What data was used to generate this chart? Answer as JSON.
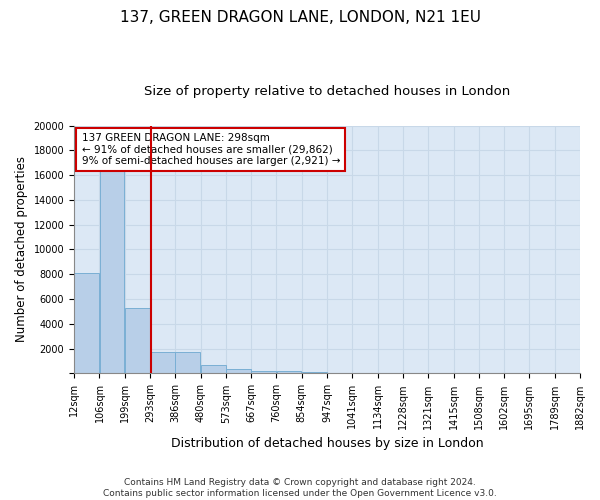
{
  "title": "137, GREEN DRAGON LANE, LONDON, N21 1EU",
  "subtitle": "Size of property relative to detached houses in London",
  "xlabel": "Distribution of detached houses by size in London",
  "ylabel": "Number of detached properties",
  "footer_line1": "Contains HM Land Registry data © Crown copyright and database right 2024.",
  "footer_line2": "Contains public sector information licensed under the Open Government Licence v3.0.",
  "annotation_line1": "137 GREEN DRAGON LANE: 298sqm",
  "annotation_line2": "← 91% of detached houses are smaller (29,862)",
  "annotation_line3": "9% of semi-detached houses are larger (2,921) →",
  "bar_left_edges": [
    12,
    106,
    199,
    293,
    386,
    480,
    573,
    667,
    760,
    854,
    947,
    1041,
    1134,
    1228,
    1321,
    1415,
    1508,
    1602,
    1695,
    1789
  ],
  "bar_heights": [
    8100,
    16500,
    5300,
    1750,
    1750,
    650,
    350,
    200,
    175,
    150,
    0,
    0,
    0,
    0,
    0,
    0,
    0,
    0,
    0,
    0
  ],
  "bin_width": 93,
  "tick_labels": [
    "12sqm",
    "106sqm",
    "199sqm",
    "293sqm",
    "386sqm",
    "480sqm",
    "573sqm",
    "667sqm",
    "760sqm",
    "854sqm",
    "947sqm",
    "1041sqm",
    "1134sqm",
    "1228sqm",
    "1321sqm",
    "1415sqm",
    "1508sqm",
    "1602sqm",
    "1695sqm",
    "1789sqm",
    "1882sqm"
  ],
  "bar_color": "#b8cfe8",
  "bar_edge_color": "#7aafd4",
  "vline_color": "#cc0000",
  "vline_x": 298,
  "annotation_box_edgecolor": "#cc0000",
  "ylim": [
    0,
    20000
  ],
  "yticks": [
    0,
    2000,
    4000,
    6000,
    8000,
    10000,
    12000,
    14000,
    16000,
    18000,
    20000
  ],
  "grid_color": "#c8d8e8",
  "bg_color": "#dce8f5",
  "title_fontsize": 11,
  "subtitle_fontsize": 9.5,
  "xlabel_fontsize": 9,
  "ylabel_fontsize": 8.5,
  "tick_fontsize": 7,
  "annotation_fontsize": 7.5,
  "footer_fontsize": 6.5
}
